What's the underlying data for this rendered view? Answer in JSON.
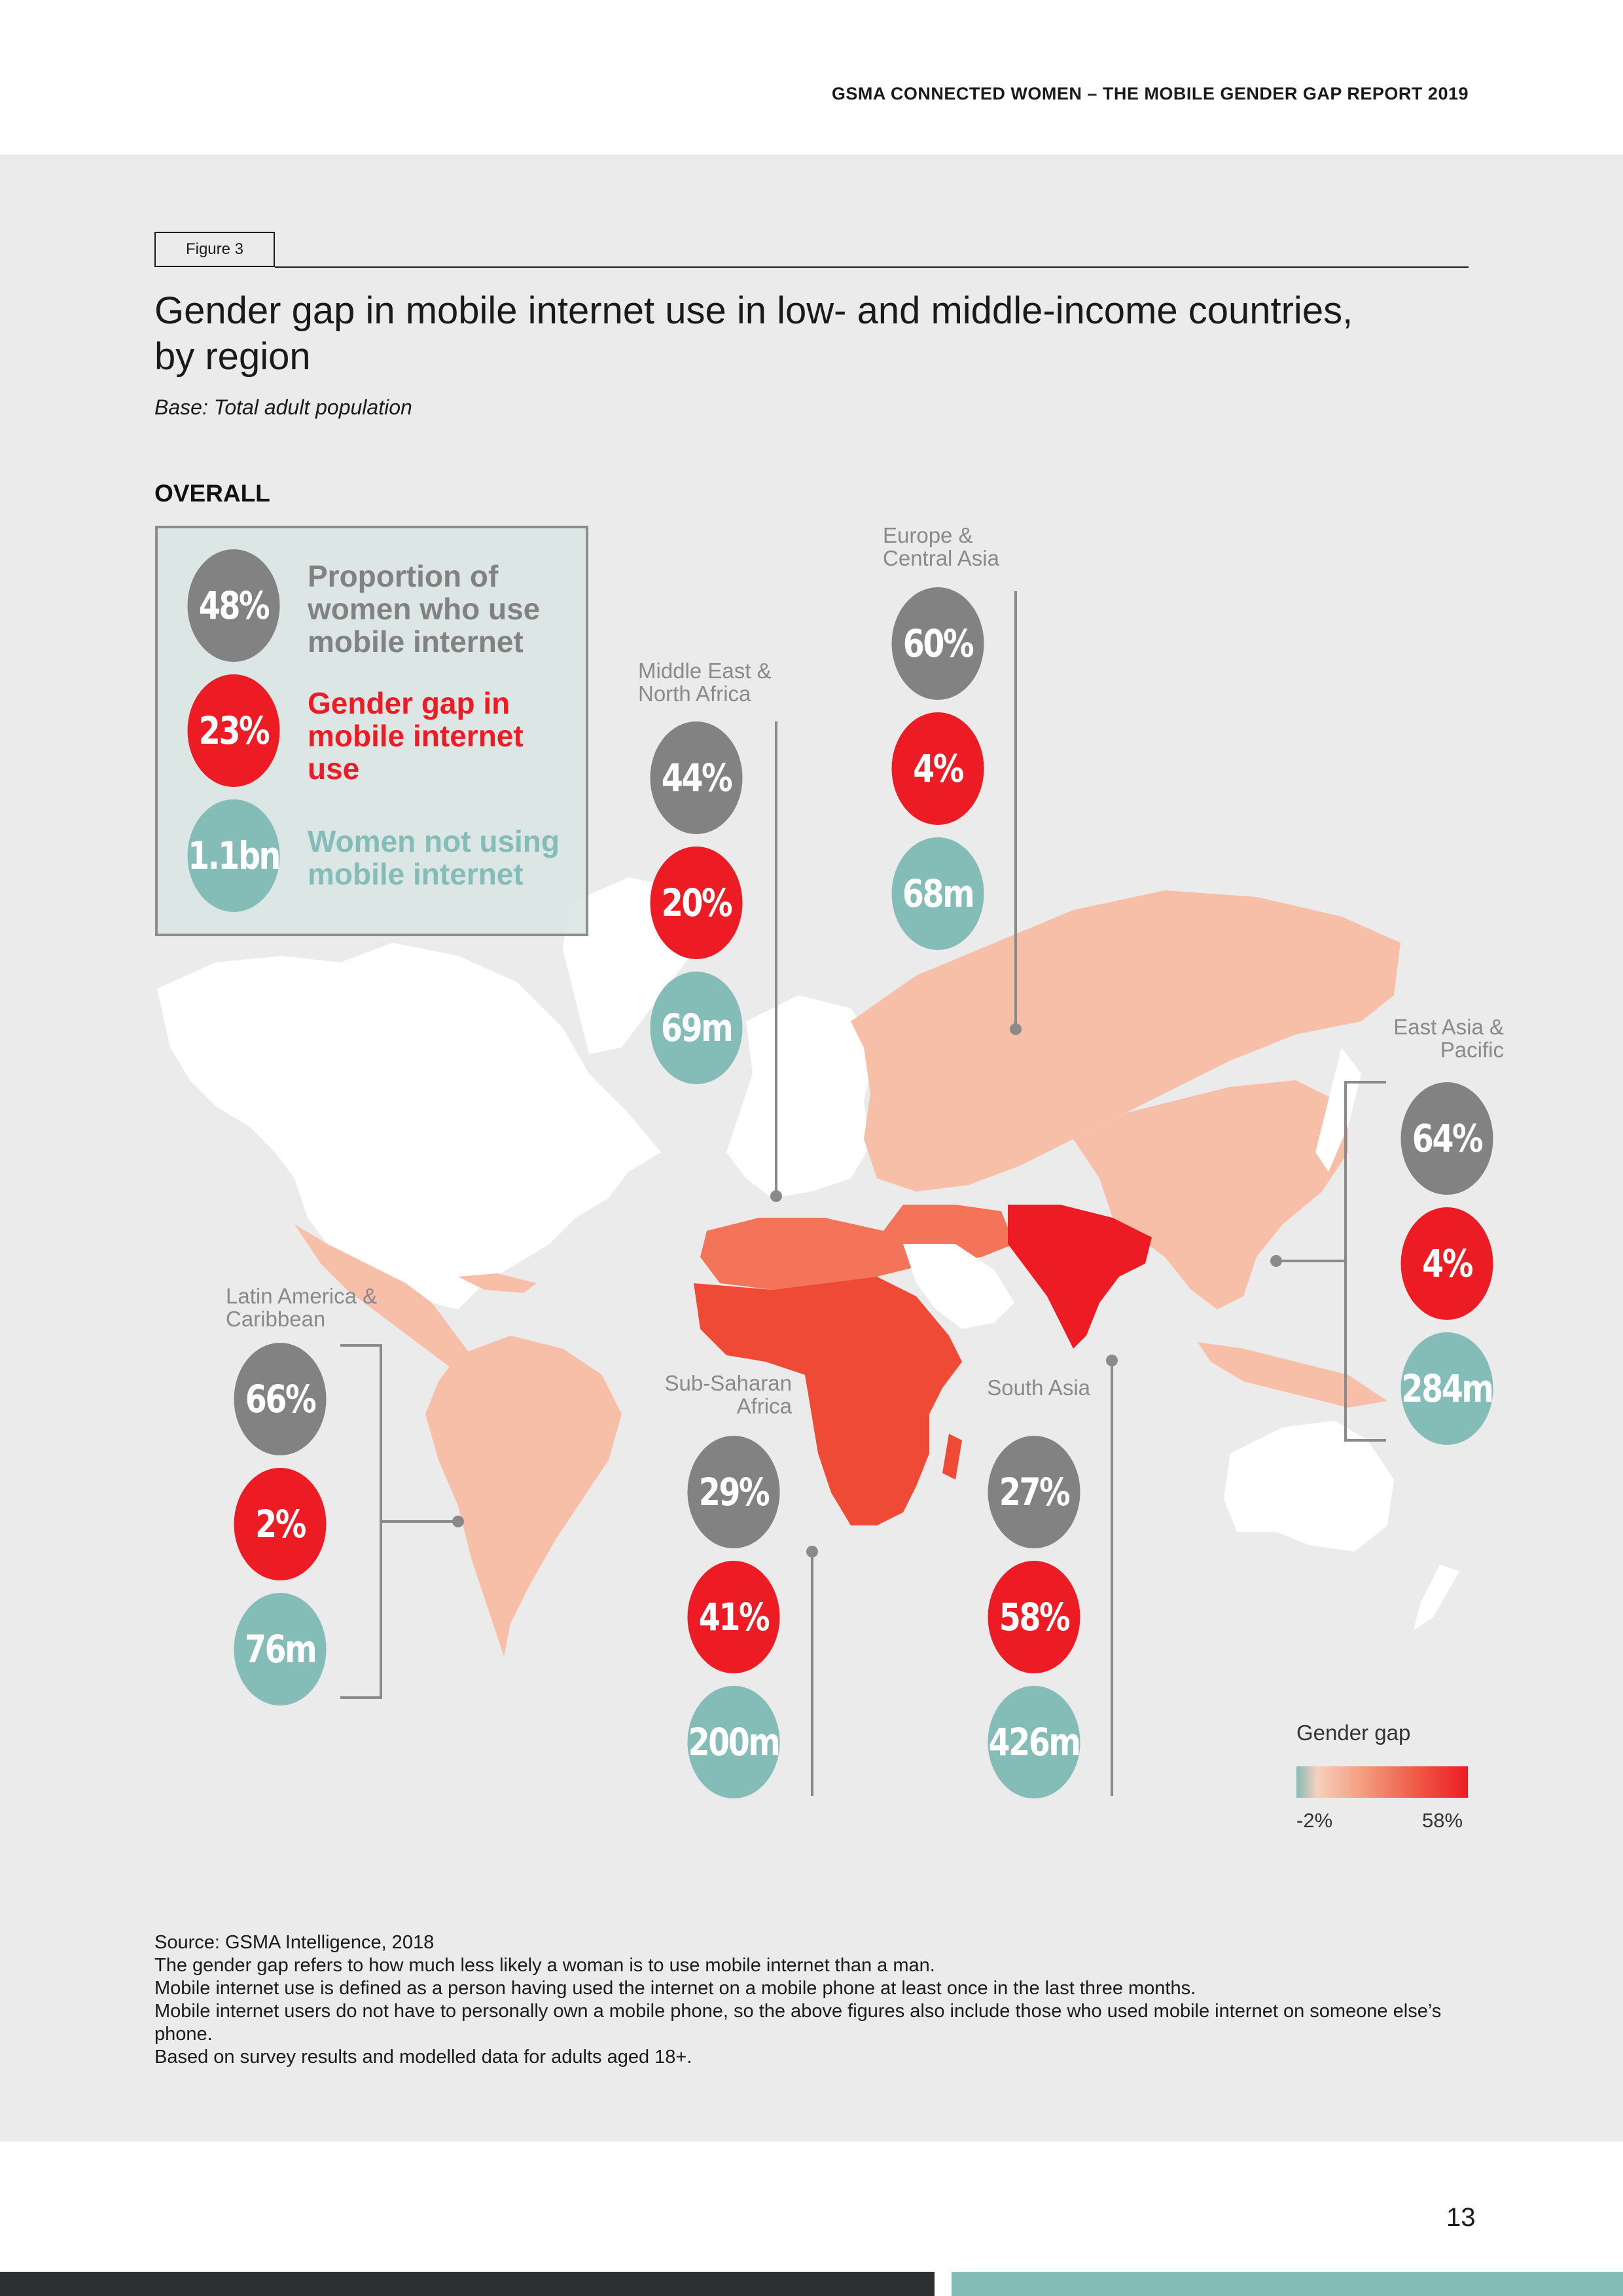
{
  "header": {
    "title": "GSMA CONNECTED WOMEN – THE MOBILE GENDER GAP REPORT 2019"
  },
  "figure": {
    "tag": "Figure 3",
    "title": "Gender gap in mobile internet use in low- and middle-income countries, by region",
    "base": "Base: Total adult population"
  },
  "overall": {
    "label": "OVERALL",
    "women_using": "48%",
    "women_using_label": "Proportion of women who use mobile internet",
    "gender_gap": "23%",
    "gender_gap_label": "Gender gap in mobile internet use",
    "women_not_using": "1.1bn",
    "women_not_using_label": "Women not using mobile internet"
  },
  "regions": {
    "europe_central_asia": {
      "name": "Europe & Central Asia",
      "women_using": "60%",
      "gender_gap": "4%",
      "women_not_using": "68m"
    },
    "middle_east_north_africa": {
      "name": "Middle East & North Africa",
      "women_using": "44%",
      "gender_gap": "20%",
      "women_not_using": "69m"
    },
    "east_asia_pacific": {
      "name": "East Asia & Pacific",
      "women_using": "64%",
      "gender_gap": "4%",
      "women_not_using": "284m"
    },
    "latin_america_caribbean": {
      "name": "Latin America & Caribbean",
      "women_using": "66%",
      "gender_gap": "2%",
      "women_not_using": "76m"
    },
    "sub_saharan_africa": {
      "name": "Sub-Saharan Africa",
      "women_using": "29%",
      "gender_gap": "41%",
      "women_not_using": "200m"
    },
    "south_asia": {
      "name": "South Asia",
      "women_using": "27%",
      "gender_gap": "58%",
      "women_not_using": "426m"
    }
  },
  "legend": {
    "title": "Gender gap",
    "min": "-2%",
    "max": "58%"
  },
  "colors": {
    "grey": "#828283",
    "red": "#ed1c24",
    "teal": "#84bcb8",
    "panel": "#ebebec"
  },
  "notes": [
    "Source: GSMA Intelligence, 2018",
    "The gender gap refers to how much less likely a woman is to use mobile internet than a man.",
    "Mobile internet use is defined as a person having used the internet on a mobile phone at least once in the last three months.",
    "Mobile internet users do not have to personally own a mobile phone, so the above figures also include those who used mobile internet on someone else’s phone.",
    "Based on survey results and modelled data for adults aged 18+."
  ],
  "page_number": "13"
}
